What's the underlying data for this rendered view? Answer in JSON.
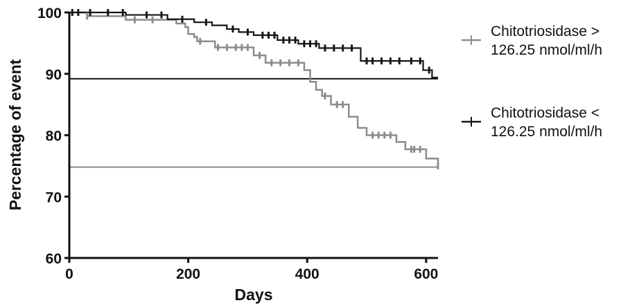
{
  "chart_data": {
    "type": "line",
    "subtype": "kaplan-meier step plot with censor marks",
    "title": "",
    "xlabel": "Days",
    "ylabel": "Percentage of event",
    "xlim": [
      0,
      620
    ],
    "ylim": [
      60,
      100
    ],
    "x_ticks": [
      0,
      200,
      400,
      600
    ],
    "y_ticks": [
      60,
      70,
      80,
      90,
      100
    ],
    "grid": false,
    "legend_position": "right",
    "series": [
      {
        "name": "Chitotriosidase > 126.25 nmol/ml/h",
        "color": "#8c8c8c",
        "x": [
          0,
          30,
          95,
          180,
          195,
          200,
          210,
          215,
          245,
          310,
          330,
          395,
          405,
          415,
          425,
          440,
          470,
          485,
          500,
          550,
          565,
          600,
          620
        ],
        "y": [
          100,
          99.4,
          98.8,
          98.2,
          97.6,
          96.5,
          96.0,
          95.3,
          94.3,
          93.0,
          91.8,
          90.6,
          88.7,
          87.4,
          86.4,
          85.0,
          83.0,
          81.2,
          80.0,
          78.9,
          77.7,
          76.2,
          75.0
        ],
        "censor_x": [
          30,
          110,
          140,
          220,
          250,
          265,
          280,
          290,
          300,
          320,
          340,
          355,
          370,
          385,
          430,
          450,
          460,
          510,
          520,
          530,
          540,
          575,
          580,
          590,
          620
        ],
        "reference_line": 74.8
      },
      {
        "name": "Chitotriosidase < 126.25 nmol/ml/h",
        "color": "#151515",
        "x": [
          0,
          95,
          165,
          210,
          240,
          265,
          285,
          310,
          350,
          385,
          420,
          490,
          595,
          610,
          620
        ],
        "y": [
          100,
          99.6,
          98.9,
          98.4,
          97.9,
          97.3,
          96.8,
          96.3,
          95.5,
          94.9,
          94.2,
          92.1,
          90.6,
          89.4,
          89.4
        ],
        "censor_x": [
          5,
          15,
          35,
          65,
          90,
          130,
          155,
          190,
          230,
          275,
          300,
          325,
          335,
          345,
          360,
          370,
          380,
          395,
          405,
          415,
          430,
          445,
          460,
          475,
          500,
          510,
          525,
          540,
          555,
          575,
          590,
          605
        ],
        "reference_line": 89.2
      }
    ]
  }
}
